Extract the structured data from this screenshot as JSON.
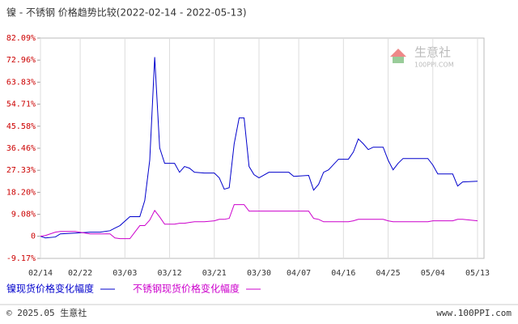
{
  "chart_data": {
    "type": "line",
    "title": "镍 - 不锈钢 价格趋势比较(2022-02-14 - 2022-05-13)",
    "x": [
      "2022-02-14",
      "2022-02-15",
      "2022-02-17",
      "2022-02-18",
      "2022-02-21",
      "2022-02-24",
      "2022-02-26",
      "2022-02-28",
      "2022-03-01",
      "2022-03-02",
      "2022-03-04",
      "2022-03-06",
      "2022-03-07",
      "2022-03-08",
      "2022-03-09",
      "2022-03-10",
      "2022-03-11",
      "2022-03-13",
      "2022-03-14",
      "2022-03-15",
      "2022-03-16",
      "2022-03-17",
      "2022-03-19",
      "2022-03-21",
      "2022-03-22",
      "2022-03-23",
      "2022-03-24",
      "2022-03-25",
      "2022-03-26",
      "2022-03-27",
      "2022-03-28",
      "2022-03-29",
      "2022-03-30",
      "2022-04-01",
      "2022-04-05",
      "2022-04-06",
      "2022-04-09",
      "2022-04-10",
      "2022-04-11",
      "2022-04-12",
      "2022-04-13",
      "2022-04-15",
      "2022-04-17",
      "2022-04-18",
      "2022-04-19",
      "2022-04-20",
      "2022-04-21",
      "2022-04-22",
      "2022-04-24",
      "2022-04-25",
      "2022-04-26",
      "2022-04-27",
      "2022-04-28",
      "2022-05-03",
      "2022-05-04",
      "2022-05-05",
      "2022-05-08",
      "2022-05-09",
      "2022-05-10",
      "2022-05-13"
    ],
    "series": [
      {
        "name": "镍现货价格变化幅度",
        "color": "#0000cc",
        "values": [
          0,
          -0.7,
          -0.3,
          1,
          1.3,
          1.7,
          1.7,
          2.3,
          3.4,
          4.4,
          8.1,
          8.1,
          14.8,
          31.5,
          74.2,
          36.6,
          30.2,
          30.2,
          26.5,
          28.9,
          28.2,
          26.5,
          26.2,
          26.2,
          24.2,
          19.5,
          20.1,
          38.3,
          49,
          49,
          28.9,
          25.5,
          24.2,
          26.5,
          26.5,
          24.8,
          25.2,
          19.1,
          21.5,
          26.5,
          27.5,
          31.9,
          31.9,
          34.9,
          40.3,
          38.3,
          35.9,
          36.9,
          36.9,
          31.5,
          27.5,
          30.2,
          32.2,
          32.2,
          29.5,
          25.8,
          25.8,
          20.8,
          22.5,
          22.8
        ]
      },
      {
        "name": "不锈钢现货价格变化幅度",
        "color": "#cc00cc",
        "values": [
          0,
          0.3,
          1.7,
          2,
          2,
          1,
          1,
          1,
          -0.7,
          -1,
          -1,
          4.4,
          4.4,
          6.7,
          10.7,
          8,
          5,
          5,
          5.4,
          5.4,
          5.7,
          6,
          6,
          6.4,
          7,
          7,
          7.4,
          13.1,
          13.1,
          13.1,
          10.4,
          10.4,
          10.4,
          10.4,
          10.4,
          10.4,
          10.4,
          7.4,
          7,
          6,
          6,
          6,
          6,
          6.4,
          7,
          7,
          7,
          7,
          7,
          6.4,
          6,
          6,
          6,
          6,
          6.4,
          6.4,
          6.4,
          7,
          7,
          6.4
        ]
      }
    ],
    "xlim": [
      "2022-02-14",
      "2022-05-13"
    ],
    "xticks": [
      {
        "value": "2022-02-14",
        "label": "02/14"
      },
      {
        "value": "2022-02-22",
        "label": "02/22"
      },
      {
        "value": "2022-03-03",
        "label": "03/03"
      },
      {
        "value": "2022-03-12",
        "label": "03/12"
      },
      {
        "value": "2022-03-21",
        "label": "03/21"
      },
      {
        "value": "2022-03-30",
        "label": "03/30"
      },
      {
        "value": "2022-04-07",
        "label": "04/07"
      },
      {
        "value": "2022-04-16",
        "label": "04/16"
      },
      {
        "value": "2022-04-25",
        "label": "04/25"
      },
      {
        "value": "2022-05-04",
        "label": "05/04"
      },
      {
        "value": "2022-05-13",
        "label": "05/13"
      }
    ],
    "ylim": [
      -9.17,
      82.09
    ],
    "yticks": [
      {
        "value": 82.09,
        "label": "82.09%"
      },
      {
        "value": 72.96,
        "label": "72.96%"
      },
      {
        "value": 63.83,
        "label": "63.83%"
      },
      {
        "value": 54.71,
        "label": "54.71%"
      },
      {
        "value": 45.58,
        "label": "45.58%"
      },
      {
        "value": 36.46,
        "label": "36.46%"
      },
      {
        "value": 27.33,
        "label": "27.33%"
      },
      {
        "value": 18.2,
        "label": "18.20%"
      },
      {
        "value": 9.08,
        "label": "9.08%"
      },
      0,
      {
        "value": -9.17,
        "label": "-9.17%"
      }
    ],
    "grid": true,
    "watermark": {
      "name": "生意社",
      "site": "100PPI.COM"
    },
    "footer": {
      "copyright": "© 2025.05 生意社",
      "site": "www.100PPI.com"
    }
  }
}
